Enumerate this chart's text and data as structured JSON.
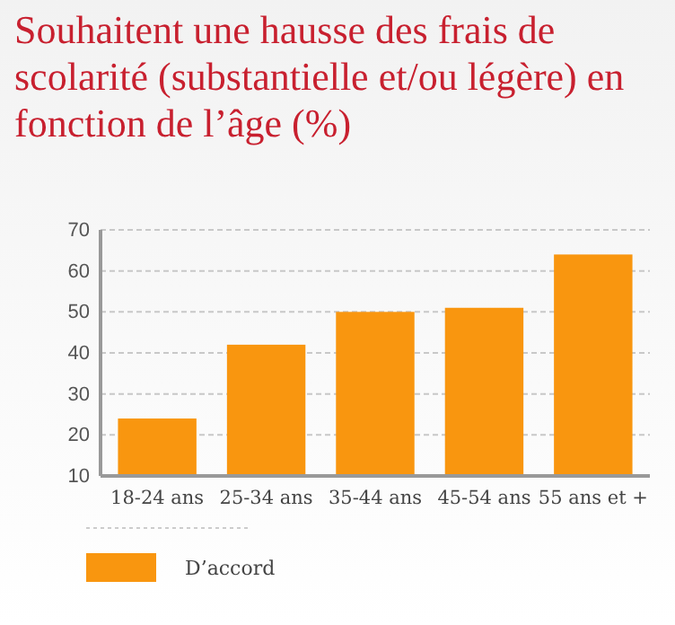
{
  "chart_data": {
    "type": "bar",
    "title": "Souhaitent une hausse des frais de scolarité (substantielle et/ou légère) en fonction de l’âge (%)",
    "categories": [
      "18-24 ans",
      "25-34 ans",
      "35-44 ans",
      "45-54 ans",
      "55 ans et +"
    ],
    "series": [
      {
        "name": "D’accord",
        "color": "#f9960f",
        "values": [
          24,
          42,
          50,
          51,
          64
        ]
      }
    ],
    "ylim": [
      10,
      70
    ],
    "yticks": [
      10,
      20,
      30,
      40,
      50,
      60,
      70
    ],
    "grid": "y",
    "legend": "bottom left"
  }
}
